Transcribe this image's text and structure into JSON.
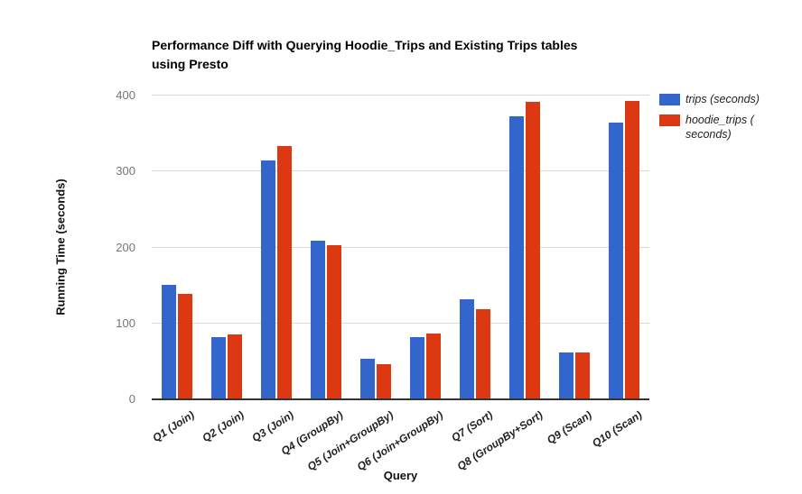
{
  "chart_data": {
    "type": "bar",
    "title": "Performance Diff with Querying Hoodie_Trips and Existing Trips tables using Presto",
    "title_lines": [
      "Performance Diff with Querying Hoodie_Trips and Existing Trips tables",
      "using Presto"
    ],
    "xlabel": "Query",
    "ylabel": "Running Time (seconds)",
    "categories": [
      "Q1 (Join)",
      "Q2 (Join)",
      "Q3 (Join)",
      "Q4 (GroupBy)",
      "Q5 (Join+GroupBy)",
      "Q6 (Join+GroupBy)",
      "Q7 (Sort)",
      "Q8 (GroupBy+Sort)",
      "Q9 (Scan)",
      "Q10 (Scan)"
    ],
    "series": [
      {
        "name": "trips (seconds)",
        "key": "trips",
        "color": "#3366CC",
        "values": [
          150,
          81,
          313,
          208,
          52,
          81,
          131,
          371,
          61,
          363
        ]
      },
      {
        "name": "hoodie_trips (seconds)",
        "key": "hoodie-trips",
        "color": "#DC3912",
        "values": [
          138,
          84,
          332,
          202,
          45,
          85,
          117,
          390,
          60,
          392
        ]
      }
    ],
    "ylim": [
      0,
      400
    ],
    "yticks": [
      0,
      100,
      200,
      300,
      400
    ],
    "grid": true,
    "legend_position": "right",
    "legend_items": [
      {
        "color": "#3366CC",
        "lines": [
          "trips (seconds)"
        ]
      },
      {
        "color": "#DC3912",
        "lines": [
          "hoodie_trips (",
          "seconds)"
        ]
      }
    ],
    "colors": {
      "series_trips": "#3366CC",
      "series_hoodie_trips": "#DC3912",
      "gridline": "#d9d9d9",
      "baseline": "#333333",
      "y_tick_label": "#757575",
      "x_tick_label": "#222222",
      "title": "#000000",
      "axis_title": "#111111",
      "legend_text": "#222222"
    }
  }
}
